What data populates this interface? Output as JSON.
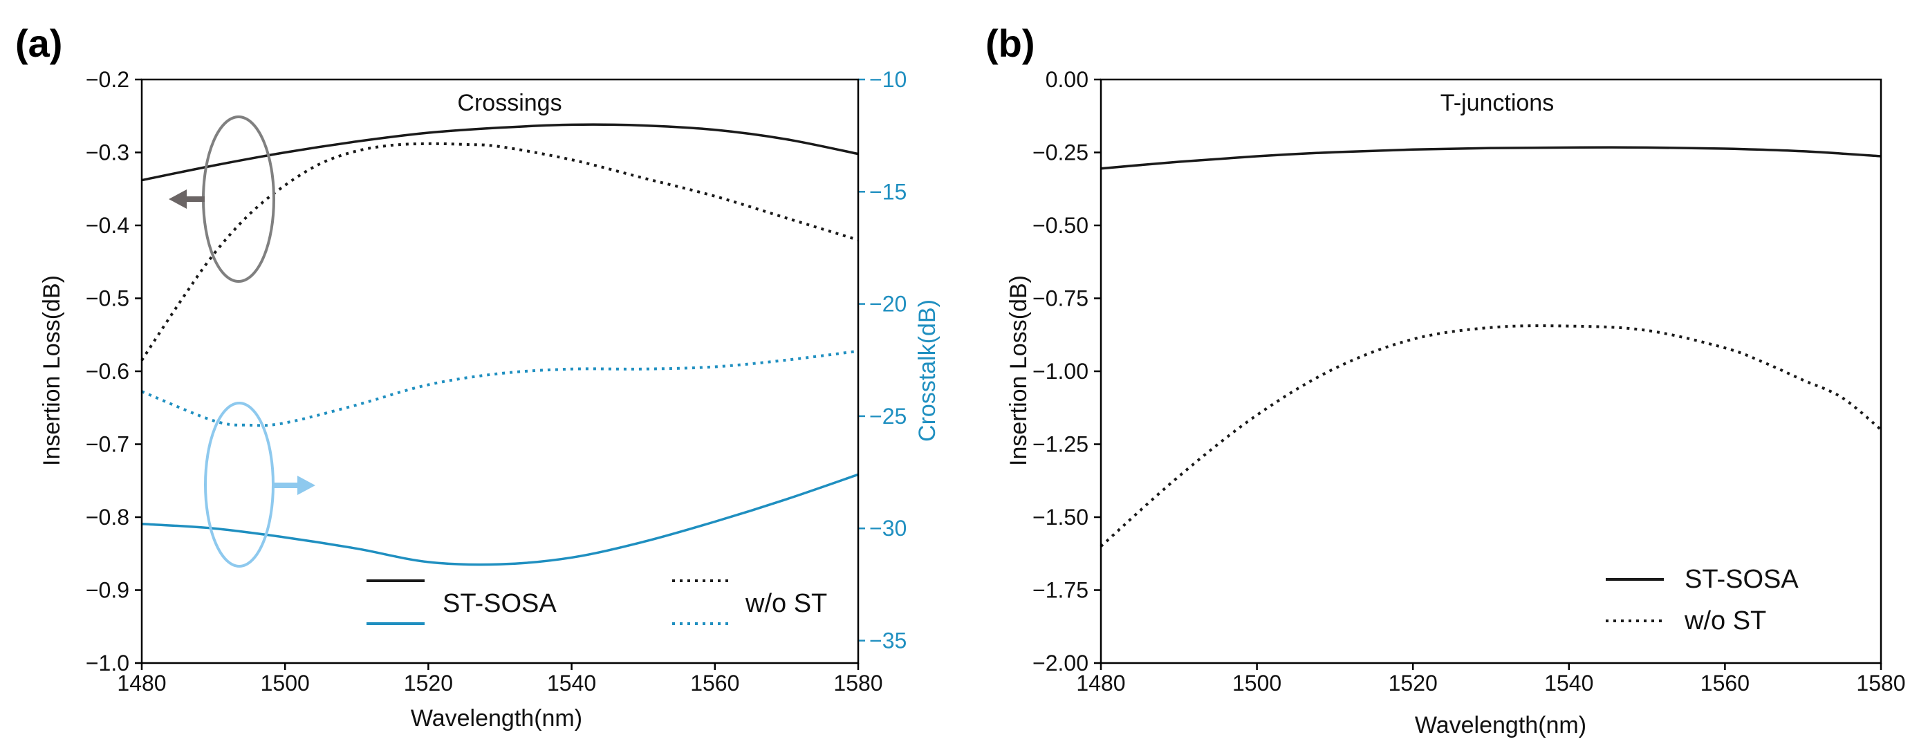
{
  "colors": {
    "black": "#1a1a1a",
    "blue": "#1f8fc0",
    "gray_ellipse": "#808080",
    "blue_ellipse": "#8ec9ee"
  },
  "chart_data": [
    {
      "panel": "(a)",
      "type": "line",
      "title": "Crossings",
      "xlabel": "Wavelength(nm)",
      "ylabel": "Insertion Loss(dB)",
      "ylabel_right": "Crosstalk(dB)",
      "xlim": [
        1480,
        1580
      ],
      "ylim": [
        -1.0,
        -0.2
      ],
      "ylim_right": [
        -36,
        -10
      ],
      "xticks": [
        "1480",
        "1500",
        "1520",
        "1540",
        "1560",
        "1580"
      ],
      "yticks": [
        "−0.2",
        "−0.3",
        "−0.4",
        "−0.5",
        "−0.6",
        "−0.7",
        "−0.8",
        "−0.9",
        "−1.0"
      ],
      "yticks_right": [
        "−10",
        "−15",
        "−20",
        "−25",
        "−30",
        "−35"
      ],
      "series": [
        {
          "name": "ST-SOSA insertion loss",
          "axis": "left",
          "color": "black",
          "dash": "solid",
          "x": [
            1480,
            1490,
            1500,
            1510,
            1520,
            1530,
            1540,
            1550,
            1560,
            1570,
            1580
          ],
          "y": [
            -0.338,
            -0.318,
            -0.3,
            -0.285,
            -0.273,
            -0.266,
            -0.262,
            -0.263,
            -0.269,
            -0.282,
            -0.302
          ]
        },
        {
          "name": "w/o ST insertion loss",
          "axis": "left",
          "color": "black",
          "dash": "dotted",
          "x": [
            1480,
            1485,
            1490,
            1495,
            1500,
            1505,
            1510,
            1515,
            1520,
            1525,
            1530,
            1540,
            1550,
            1560,
            1570,
            1580
          ],
          "y": [
            -0.585,
            -0.51,
            -0.44,
            -0.385,
            -0.345,
            -0.315,
            -0.298,
            -0.29,
            -0.288,
            -0.289,
            -0.292,
            -0.31,
            -0.335,
            -0.36,
            -0.39,
            -0.42
          ]
        },
        {
          "name": "w/o ST crosstalk",
          "axis": "right",
          "color": "blue",
          "dash": "dotted",
          "x": [
            1480,
            1490,
            1495,
            1500,
            1510,
            1520,
            1530,
            1540,
            1550,
            1560,
            1570,
            1580
          ],
          "y": [
            -23.9,
            -25.2,
            -25.4,
            -25.3,
            -24.5,
            -23.6,
            -23.1,
            -22.9,
            -22.9,
            -22.8,
            -22.5,
            -22.1
          ]
        },
        {
          "name": "ST-SOSA crosstalk",
          "axis": "right",
          "color": "blue",
          "dash": "solid",
          "x": [
            1480,
            1490,
            1500,
            1510,
            1520,
            1530,
            1540,
            1550,
            1560,
            1570,
            1580
          ],
          "y": [
            -29.8,
            -30.0,
            -30.4,
            -30.9,
            -31.5,
            -31.6,
            -31.3,
            -30.6,
            -29.7,
            -28.7,
            -27.6
          ]
        }
      ],
      "legend": {
        "placement": "bottom-right",
        "entries": [
          {
            "label": "ST-SOSA",
            "style": "solid"
          },
          {
            "label": "w/o ST",
            "style": "dotted"
          }
        ]
      }
    },
    {
      "panel": "(b)",
      "type": "line",
      "title": "T-junctions",
      "xlabel": "Wavelength(nm)",
      "ylabel": "Insertion Loss(dB)",
      "xlim": [
        1480,
        1580
      ],
      "ylim": [
        -2.0,
        0.0
      ],
      "xticks": [
        "1480",
        "1500",
        "1520",
        "1540",
        "1560",
        "1580"
      ],
      "yticks": [
        "0.00",
        "−0.25",
        "−0.50",
        "−0.75",
        "−1.00",
        "−1.25",
        "−1.50",
        "−1.75",
        "−2.00"
      ],
      "series": [
        {
          "name": "ST-SOSA",
          "color": "black",
          "dash": "solid",
          "x": [
            1480,
            1490,
            1500,
            1510,
            1520,
            1530,
            1540,
            1550,
            1560,
            1570,
            1580
          ],
          "y": [
            -0.305,
            -0.282,
            -0.263,
            -0.249,
            -0.24,
            -0.235,
            -0.233,
            -0.233,
            -0.237,
            -0.246,
            -0.263
          ]
        },
        {
          "name": "w/o ST",
          "color": "black",
          "dash": "dotted",
          "x": [
            1480,
            1490,
            1500,
            1510,
            1520,
            1530,
            1540,
            1550,
            1560,
            1565,
            1570,
            1575,
            1580
          ],
          "y": [
            -1.6,
            -1.36,
            -1.15,
            -0.99,
            -0.89,
            -0.85,
            -0.845,
            -0.86,
            -0.92,
            -0.97,
            -1.03,
            -1.09,
            -1.2
          ]
        }
      ],
      "legend": {
        "placement": "bottom-right",
        "entries": [
          {
            "label": "ST-SOSA",
            "style": "solid"
          },
          {
            "label": "w/o ST",
            "style": "dotted"
          }
        ]
      }
    }
  ]
}
